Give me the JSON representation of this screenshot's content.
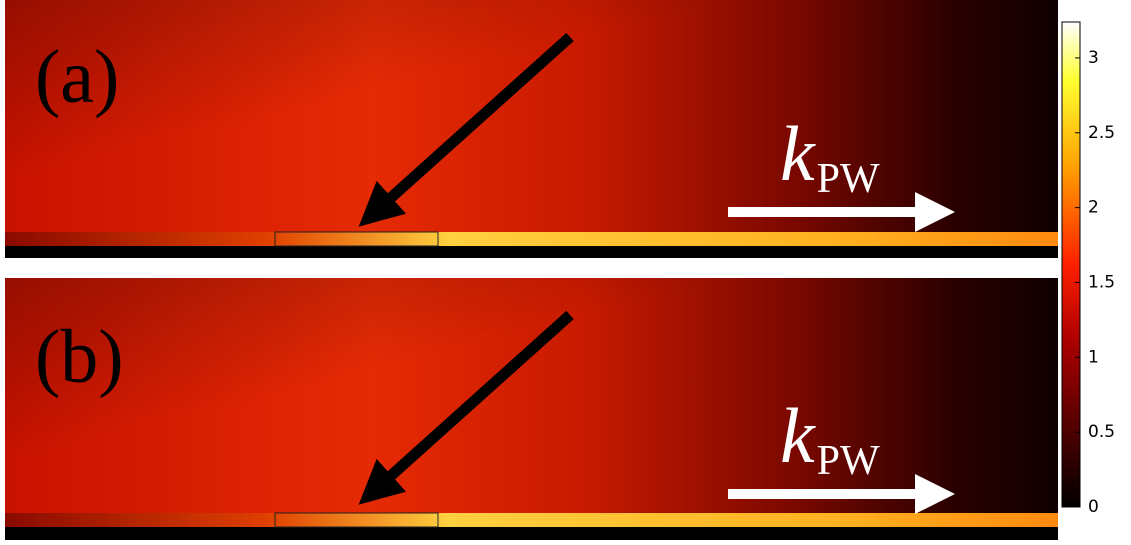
{
  "figure": {
    "panels": [
      {
        "label": "(a)",
        "annotation": {
          "symbol": "k",
          "subscript": "PW"
        }
      },
      {
        "label": "(b)",
        "annotation": {
          "symbol": "k",
          "subscript": "PW"
        }
      }
    ],
    "colorbar": {
      "lim": [
        0,
        3.24
      ],
      "ticks": [
        0,
        0.5,
        1,
        1.5,
        2,
        2.5,
        3
      ],
      "colormap": "hot"
    }
  }
}
